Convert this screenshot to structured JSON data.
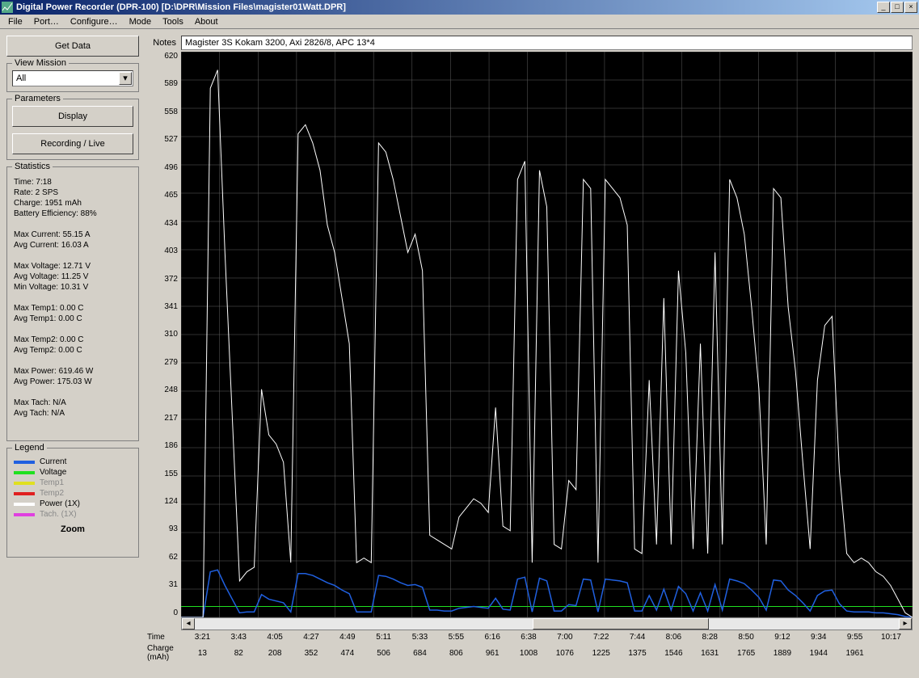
{
  "window": {
    "title": "Digital Power Recorder (DPR-100) [D:\\DPR\\Mission Files\\magister01Watt.DPR]"
  },
  "menubar": [
    "File",
    "Port…",
    "Configure…",
    "Mode",
    "Tools",
    "About"
  ],
  "buttons": {
    "get_data": "Get Data",
    "display": "Display",
    "recording": "Recording / Live"
  },
  "panels": {
    "view_mission": {
      "title": "View Mission",
      "selected": "All"
    },
    "parameters": {
      "title": "Parameters"
    },
    "statistics": {
      "title": "Statistics",
      "lines": [
        "Time: 7:18",
        "Rate: 2 SPS",
        "Charge: 1951 mAh",
        "Battery Efficiency: 88%",
        "",
        "Max Current: 55.15 A",
        "Avg Current: 16.03 A",
        "",
        "Max Voltage: 12.71 V",
        "Avg Voltage: 11.25 V",
        "Min Voltage: 10.31 V",
        "",
        "Max Temp1: 0.00 C",
        "Avg Temp1: 0.00 C",
        "",
        "Max Temp2: 0.00 C",
        "Avg Temp2: 0.00 C",
        "",
        "Max Power: 619.46 W",
        "Avg Power: 175.03 W",
        "",
        "Max Tach: N/A",
        "Avg Tach: N/A"
      ]
    },
    "legend": {
      "title": "Legend",
      "items": [
        {
          "label": "Current",
          "color": "#2060e0",
          "dim": false
        },
        {
          "label": "Voltage",
          "color": "#20e020",
          "dim": false
        },
        {
          "label": "Temp1",
          "color": "#e0e020",
          "dim": true
        },
        {
          "label": "Temp2",
          "color": "#e02020",
          "dim": true
        },
        {
          "label": "Power (1X)",
          "color": "#ffffff",
          "dim": false
        },
        {
          "label": "Tach. (1X)",
          "color": "#e040e0",
          "dim": true
        }
      ],
      "zoom": "Zoom"
    }
  },
  "chart": {
    "notes_label": "Notes",
    "notes": "Magister 3S Kokam 3200, Axi 2826/8, APC 13*4",
    "background_color": "#000000",
    "grid_color": "#606060",
    "yticks": [
      620,
      589,
      558,
      527,
      496,
      465,
      434,
      403,
      372,
      341,
      310,
      279,
      248,
      217,
      186,
      155,
      124,
      93,
      62,
      31,
      0
    ],
    "ylim": [
      0,
      620
    ],
    "series": {
      "power": {
        "color": "#ffffff",
        "stroke_width": 1,
        "points": [
          [
            0,
            0
          ],
          [
            2,
            0
          ],
          [
            3,
            0
          ],
          [
            4,
            580
          ],
          [
            5,
            600
          ],
          [
            6,
            400
          ],
          [
            7,
            220
          ],
          [
            8,
            40
          ],
          [
            9,
            50
          ],
          [
            10,
            55
          ],
          [
            11,
            250
          ],
          [
            12,
            200
          ],
          [
            13,
            190
          ],
          [
            14,
            170
          ],
          [
            15,
            60
          ],
          [
            16,
            530
          ],
          [
            17,
            540
          ],
          [
            18,
            520
          ],
          [
            19,
            490
          ],
          [
            20,
            430
          ],
          [
            21,
            400
          ],
          [
            22,
            350
          ],
          [
            23,
            300
          ],
          [
            24,
            60
          ],
          [
            25,
            65
          ],
          [
            26,
            60
          ],
          [
            27,
            520
          ],
          [
            28,
            510
          ],
          [
            29,
            480
          ],
          [
            30,
            440
          ],
          [
            31,
            400
          ],
          [
            32,
            420
          ],
          [
            33,
            380
          ],
          [
            34,
            90
          ],
          [
            35,
            85
          ],
          [
            36,
            80
          ],
          [
            37,
            75
          ],
          [
            38,
            110
          ],
          [
            39,
            120
          ],
          [
            40,
            130
          ],
          [
            41,
            125
          ],
          [
            42,
            115
          ],
          [
            43,
            230
          ],
          [
            44,
            100
          ],
          [
            45,
            95
          ],
          [
            46,
            480
          ],
          [
            47,
            500
          ],
          [
            48,
            60
          ],
          [
            49,
            490
          ],
          [
            50,
            450
          ],
          [
            51,
            80
          ],
          [
            52,
            75
          ],
          [
            53,
            150
          ],
          [
            54,
            140
          ],
          [
            55,
            480
          ],
          [
            56,
            470
          ],
          [
            57,
            60
          ],
          [
            58,
            480
          ],
          [
            59,
            470
          ],
          [
            60,
            460
          ],
          [
            61,
            430
          ],
          [
            62,
            75
          ],
          [
            63,
            70
          ],
          [
            64,
            260
          ],
          [
            65,
            80
          ],
          [
            66,
            350
          ],
          [
            67,
            80
          ],
          [
            68,
            380
          ],
          [
            69,
            290
          ],
          [
            70,
            75
          ],
          [
            71,
            300
          ],
          [
            72,
            70
          ],
          [
            73,
            400
          ],
          [
            74,
            80
          ],
          [
            75,
            480
          ],
          [
            76,
            460
          ],
          [
            77,
            420
          ],
          [
            78,
            340
          ],
          [
            79,
            250
          ],
          [
            80,
            80
          ],
          [
            81,
            470
          ],
          [
            82,
            460
          ],
          [
            83,
            340
          ],
          [
            84,
            270
          ],
          [
            85,
            170
          ],
          [
            86,
            75
          ],
          [
            87,
            260
          ],
          [
            88,
            320
          ],
          [
            89,
            330
          ],
          [
            90,
            160
          ],
          [
            91,
            70
          ],
          [
            92,
            60
          ],
          [
            93,
            65
          ],
          [
            94,
            60
          ],
          [
            95,
            50
          ],
          [
            96,
            45
          ],
          [
            97,
            35
          ],
          [
            98,
            20
          ],
          [
            99,
            5
          ],
          [
            100,
            0
          ]
        ]
      },
      "current": {
        "color": "#2060e0",
        "stroke_width": 1.5,
        "points": [
          [
            0,
            0
          ],
          [
            3,
            0
          ],
          [
            4,
            50
          ],
          [
            5,
            52
          ],
          [
            6,
            35
          ],
          [
            7,
            20
          ],
          [
            8,
            5
          ],
          [
            9,
            6
          ],
          [
            10,
            6
          ],
          [
            11,
            25
          ],
          [
            12,
            20
          ],
          [
            13,
            18
          ],
          [
            14,
            16
          ],
          [
            15,
            6
          ],
          [
            16,
            48
          ],
          [
            17,
            48
          ],
          [
            18,
            46
          ],
          [
            19,
            42
          ],
          [
            20,
            38
          ],
          [
            21,
            35
          ],
          [
            22,
            30
          ],
          [
            23,
            26
          ],
          [
            24,
            6
          ],
          [
            25,
            6
          ],
          [
            26,
            6
          ],
          [
            27,
            46
          ],
          [
            28,
            45
          ],
          [
            29,
            42
          ],
          [
            30,
            38
          ],
          [
            31,
            35
          ],
          [
            32,
            36
          ],
          [
            33,
            33
          ],
          [
            34,
            8
          ],
          [
            35,
            8
          ],
          [
            36,
            7
          ],
          [
            37,
            7
          ],
          [
            38,
            10
          ],
          [
            39,
            11
          ],
          [
            40,
            12
          ],
          [
            41,
            11
          ],
          [
            42,
            10
          ],
          [
            43,
            21
          ],
          [
            44,
            9
          ],
          [
            45,
            8
          ],
          [
            46,
            42
          ],
          [
            47,
            44
          ],
          [
            48,
            6
          ],
          [
            49,
            43
          ],
          [
            50,
            40
          ],
          [
            51,
            7
          ],
          [
            52,
            7
          ],
          [
            53,
            14
          ],
          [
            54,
            13
          ],
          [
            55,
            42
          ],
          [
            56,
            41
          ],
          [
            57,
            6
          ],
          [
            58,
            42
          ],
          [
            59,
            41
          ],
          [
            60,
            40
          ],
          [
            61,
            38
          ],
          [
            62,
            7
          ],
          [
            63,
            7
          ],
          [
            64,
            24
          ],
          [
            65,
            8
          ],
          [
            66,
            31
          ],
          [
            67,
            8
          ],
          [
            68,
            34
          ],
          [
            69,
            26
          ],
          [
            70,
            7
          ],
          [
            71,
            27
          ],
          [
            72,
            7
          ],
          [
            73,
            36
          ],
          [
            74,
            8
          ],
          [
            75,
            42
          ],
          [
            76,
            40
          ],
          [
            77,
            37
          ],
          [
            78,
            30
          ],
          [
            79,
            22
          ],
          [
            80,
            8
          ],
          [
            81,
            41
          ],
          [
            82,
            40
          ],
          [
            83,
            30
          ],
          [
            84,
            24
          ],
          [
            85,
            16
          ],
          [
            86,
            7
          ],
          [
            87,
            24
          ],
          [
            88,
            29
          ],
          [
            89,
            30
          ],
          [
            90,
            15
          ],
          [
            91,
            7
          ],
          [
            92,
            6
          ],
          [
            93,
            6
          ],
          [
            94,
            6
          ],
          [
            95,
            5
          ],
          [
            96,
            5
          ],
          [
            97,
            4
          ],
          [
            98,
            3
          ],
          [
            99,
            1
          ],
          [
            100,
            0
          ]
        ]
      },
      "voltage": {
        "color": "#20e020",
        "stroke_width": 1,
        "points": [
          [
            0,
            12
          ],
          [
            100,
            12
          ]
        ]
      }
    },
    "time_label": "Time",
    "time_ticks": [
      "3:21",
      "3:43",
      "4:05",
      "4:27",
      "4:49",
      "5:11",
      "5:33",
      "5:55",
      "6:16",
      "6:38",
      "7:00",
      "7:22",
      "7:44",
      "8:06",
      "8:28",
      "8:50",
      "9:12",
      "9:34",
      "9:55",
      "10:17"
    ],
    "charge_label": "Charge",
    "charge_unit": "(mAh)",
    "charge_ticks": [
      "13",
      "82",
      "208",
      "352",
      "474",
      "506",
      "684",
      "806",
      "961",
      "1008",
      "1076",
      "1225",
      "1375",
      "1546",
      "1631",
      "1765",
      "1889",
      "1944",
      "1961",
      ""
    ],
    "scrollbar": {
      "thumb_left": 48,
      "thumb_width": 25
    }
  },
  "colors": {
    "ui_bg": "#d4d0c8",
    "title_left": "#0a246a",
    "title_right": "#a6caf0"
  }
}
